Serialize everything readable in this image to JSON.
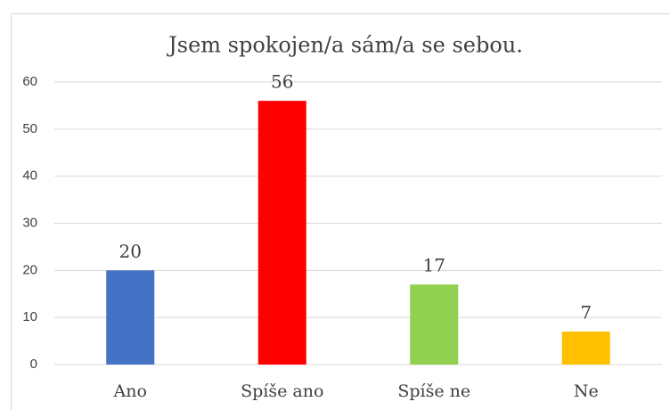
{
  "chart_data": {
    "type": "bar",
    "title": "Jsem spokojen/a sám/a se sebou.",
    "categories": [
      "Ano",
      "Spíše ano",
      "Spíše ne",
      "Ne"
    ],
    "values": [
      20,
      56,
      17,
      7
    ],
    "colors": [
      "#4472c4",
      "#ff0000",
      "#92d050",
      "#ffc000"
    ],
    "ylim": [
      0,
      60
    ],
    "yticks": [
      0,
      10,
      20,
      30,
      40,
      50,
      60
    ],
    "grid": true
  }
}
